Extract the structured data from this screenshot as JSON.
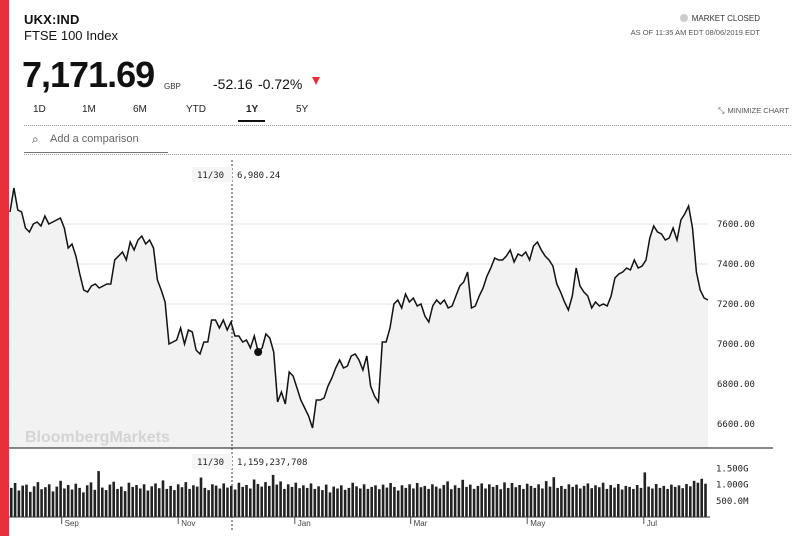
{
  "header": {
    "ticker": "UKX:IND",
    "name": "FTSE 100 Index",
    "price": "7,171.69",
    "currency": "GBP",
    "change": "-52.16",
    "change_pct": "-0.72%",
    "market_status": "MARKET CLOSED",
    "as_of": "AS OF 11:35 AM EDT 08/06/2019 EDT",
    "down_color": "#e8303a"
  },
  "tabs": [
    "1D",
    "1M",
    "6M",
    "YTD",
    "1Y",
    "5Y"
  ],
  "active_tab": "1Y",
  "minimize_label": "MINIMIZE CHART",
  "comparison": {
    "placeholder": "Add a comparison"
  },
  "watermark": "BloombergMarkets",
  "tooltip": {
    "date": "11/30",
    "price": "6,980.24",
    "volume": "1,159,237,708"
  },
  "chart_data": [
    {
      "type": "line",
      "title": "",
      "ylim": [
        6480,
        7920
      ],
      "y_ticks": [
        "6600.00",
        "6800.00",
        "7000.00",
        "7200.00",
        "7400.00",
        "7600.00"
      ],
      "y_tick_values": [
        6600,
        6800,
        7000,
        7200,
        7400,
        7600
      ],
      "x_labels": [
        "Sep",
        "Nov",
        "Jan",
        "Mar",
        "May",
        "Jul"
      ],
      "series": [
        {
          "color": "#111111",
          "values": [
            7660,
            7780,
            7670,
            7660,
            7580,
            7560,
            7600,
            7610,
            7590,
            7640,
            7600,
            7610,
            7620,
            7630,
            7580,
            7480,
            7500,
            7440,
            7350,
            7270,
            7260,
            7290,
            7300,
            7280,
            7290,
            7300,
            7300,
            7420,
            7440,
            7460,
            7420,
            7510,
            7470,
            7520,
            7540,
            7500,
            7520,
            7480,
            7320,
            7270,
            7210,
            7000,
            7010,
            7020,
            7080,
            7000,
            7070,
            7060,
            6970,
            6950,
            7010,
            7010,
            7120,
            7120,
            7080,
            7120,
            7070,
            7110,
            7040,
            7040,
            7010,
            7020,
            6980,
            7040,
            6960,
            6980,
            7050,
            7030,
            6960,
            6710,
            6760,
            6700,
            6860,
            6840,
            6780,
            6720,
            6680,
            6640,
            6580,
            6720,
            6720,
            6730,
            6790,
            6830,
            6880,
            6920,
            6880,
            6890,
            6940,
            6950,
            6920,
            6870,
            6940,
            6790,
            6740,
            6710,
            7010,
            7010,
            7080,
            7200,
            7220,
            7180,
            7250,
            7210,
            7230,
            7190,
            7200,
            7140,
            7110,
            7190,
            7220,
            7200,
            7220,
            7180,
            7190,
            7240,
            7290,
            7310,
            7360,
            7180,
            7190,
            7240,
            7280,
            7340,
            7380,
            7430,
            7420,
            7420,
            7440,
            7470,
            7410,
            7450,
            7440,
            7460,
            7420,
            7490,
            7510,
            7470,
            7440,
            7420,
            7390,
            7300,
            7260,
            7210,
            7170,
            7240,
            7380,
            7290,
            7260,
            7240,
            7180,
            7210,
            7190,
            7200,
            7190,
            7240,
            7330,
            7350,
            7360,
            7380,
            7370,
            7420,
            7380,
            7390,
            7420,
            7530,
            7590,
            7560,
            7550,
            7520,
            7530,
            7580,
            7520,
            7620,
            7650,
            7690,
            7580,
            7360,
            7270,
            7230,
            7220
          ]
        }
      ]
    },
    {
      "type": "bar",
      "title": "",
      "ylim": [
        0,
        1700000000
      ],
      "y_ticks": [
        "500.0M",
        "1.000G",
        "1.500G"
      ],
      "y_tick_values": [
        500000000,
        1000000000,
        1500000000
      ],
      "series": [
        {
          "color": "#222222",
          "values": [
            900,
            1050,
            820,
            970,
            1000,
            780,
            950,
            1080,
            860,
            920,
            1010,
            790,
            940,
            1120,
            880,
            990,
            850,
            1030,
            900,
            760,
            980,
            1070,
            840,
            1420,
            910,
            830,
            1000,
            1090,
            870,
            940,
            800,
            1060,
            930,
            990,
            880,
            1010,
            820,
            950,
            1040,
            890,
            1130,
            870,
            960,
            830,
            1010,
            920,
            1080,
            870,
            980,
            940,
            1220,
            900,
            830,
            1010,
            970,
            880,
            1040,
            910,
            960,
            850,
            1060,
            930,
            990,
            880,
            1160,
            1020,
            940,
            1080,
            960,
            1300,
            1000,
            1100,
            870,
            1010,
            930,
            1060,
            890,
            980,
            900,
            1040,
            870,
            950,
            830,
            1000,
            760,
            940,
            880,
            980,
            840,
            900,
            1060,
            950,
            880,
            1010,
            870,
            930,
            980,
            860,
            1000,
            910,
            1050,
            930,
            820,
            980,
            900,
            1010,
            880,
            1050,
            920,
            960,
            870,
            1010,
            940,
            880,
            990,
            1100,
            860,
            980,
            900,
            1150,
            930,
            1000,
            870,
            960,
            1040,
            880,
            1010,
            930,
            990,
            860,
            1070,
            900,
            1050,
            920,
            990,
            870,
            1030,
            960,
            900,
            1010,
            880,
            1110,
            940,
            1230,
            900,
            960,
            870,
            1010,
            930,
            1000,
            880,
            960,
            1040,
            890,
            980,
            920,
            1060,
            870,
            990,
            910,
            1020,
            850,
            960,
            930,
            870,
            990,
            900,
            1380,
            940,
            880,
            1020,
            900,
            960,
            870,
            1000,
            930,
            980,
            890,
            1020,
            950,
            1120,
            1060,
            1180,
            1030
          ]
        }
      ]
    }
  ]
}
